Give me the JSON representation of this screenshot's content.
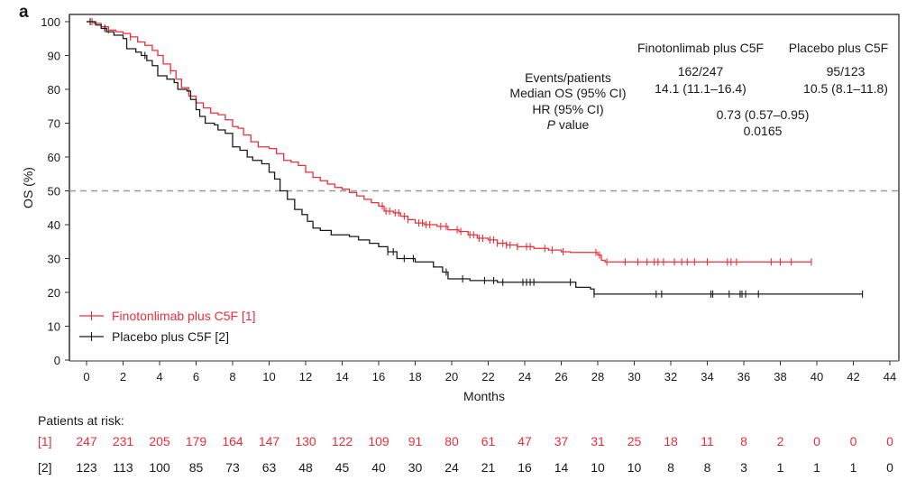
{
  "panel_label": "a",
  "chart_data": {
    "type": "line",
    "subtype": "kaplan-meier",
    "title": "",
    "xlabel": "Months",
    "ylabel": "OS (%)",
    "xlim": [
      0,
      44
    ],
    "ylim": [
      0,
      100
    ],
    "xticks": [
      0,
      2,
      4,
      6,
      8,
      10,
      12,
      14,
      16,
      18,
      20,
      22,
      24,
      26,
      28,
      30,
      32,
      34,
      36,
      38,
      40,
      42,
      44
    ],
    "yticks": [
      0,
      10,
      20,
      30,
      40,
      50,
      60,
      70,
      80,
      90,
      100
    ],
    "reference_line": {
      "y": 50,
      "style": "dashed",
      "color": "#999999"
    },
    "grid": false,
    "legend_position": "bottom-left",
    "series": [
      {
        "name": "Finotonlimab plus C5F [1]",
        "color": "#e8303a",
        "steps": [
          [
            0,
            100
          ],
          [
            0.4,
            99.5
          ],
          [
            0.8,
            98.5
          ],
          [
            1.2,
            97.5
          ],
          [
            1.6,
            97
          ],
          [
            2,
            96.5
          ],
          [
            2.4,
            95.5
          ],
          [
            2.8,
            94
          ],
          [
            3.2,
            93
          ],
          [
            3.6,
            91.5
          ],
          [
            3.9,
            90
          ],
          [
            4.2,
            87.5
          ],
          [
            4.6,
            85.5
          ],
          [
            4.9,
            83
          ],
          [
            5.2,
            80.5
          ],
          [
            5.6,
            78
          ],
          [
            6,
            76
          ],
          [
            6.4,
            74.5
          ],
          [
            6.8,
            73
          ],
          [
            7.2,
            72.5
          ],
          [
            7.6,
            71
          ],
          [
            8,
            69
          ],
          [
            8.3,
            68.5
          ],
          [
            8.6,
            66.5
          ],
          [
            9,
            64.5
          ],
          [
            9.4,
            63
          ],
          [
            10,
            62.5
          ],
          [
            10.4,
            61
          ],
          [
            10.8,
            59
          ],
          [
            11.2,
            58.5
          ],
          [
            11.6,
            57.5
          ],
          [
            12,
            55.5
          ],
          [
            12.4,
            54
          ],
          [
            12.8,
            53
          ],
          [
            13.2,
            52
          ],
          [
            13.6,
            51
          ],
          [
            14,
            50.5
          ],
          [
            14.4,
            49.5
          ],
          [
            14.8,
            48.5
          ],
          [
            15.2,
            47.5
          ],
          [
            15.6,
            46.5
          ],
          [
            16,
            45.5
          ],
          [
            16.3,
            44
          ],
          [
            16.8,
            43.5
          ],
          [
            17.2,
            42.5
          ],
          [
            17.6,
            41.5
          ],
          [
            18,
            40.5
          ],
          [
            18.5,
            40
          ],
          [
            19.2,
            39.5
          ],
          [
            19.8,
            38.5
          ],
          [
            20.4,
            38
          ],
          [
            20.9,
            37
          ],
          [
            21.4,
            36
          ],
          [
            22,
            35.5
          ],
          [
            22.5,
            34.5
          ],
          [
            23,
            34
          ],
          [
            23.6,
            33.5
          ],
          [
            24.5,
            33
          ],
          [
            25.3,
            32.5
          ],
          [
            26,
            32
          ],
          [
            26.5,
            31.8
          ],
          [
            27.7,
            31.8
          ],
          [
            28,
            31
          ],
          [
            28.2,
            29.5
          ],
          [
            28.4,
            29
          ],
          [
            39.7,
            29
          ]
        ],
        "censor_marks": [
          0.3,
          1.2,
          2.4,
          4.6,
          16.2,
          16.4,
          16.6,
          16.9,
          17.1,
          17.4,
          17.6,
          18.2,
          18.4,
          18.6,
          18.8,
          19.4,
          19.7,
          20.3,
          20.5,
          21.0,
          21.2,
          21.5,
          21.7,
          22.1,
          22.3,
          22.5,
          22.8,
          23.0,
          23.2,
          23.6,
          24.1,
          24.3,
          25.1,
          25.5,
          26.1,
          27.9,
          28.1,
          28.5,
          29.5,
          30.2,
          30.7,
          31.1,
          31.3,
          31.6,
          32.2,
          32.6,
          32.9,
          33.3,
          34.0,
          35.1,
          35.3,
          35.6,
          37.5,
          38.0,
          38.6,
          39.7
        ],
        "at_risk": [
          247,
          231,
          205,
          179,
          164,
          147,
          130,
          122,
          109,
          91,
          80,
          61,
          47,
          37,
          31,
          25,
          18,
          11,
          8,
          2,
          0,
          0,
          0
        ]
      },
      {
        "name": "Placebo plus C5F [2]",
        "color": "#1a1a1a",
        "steps": [
          [
            0,
            100
          ],
          [
            0.5,
            99
          ],
          [
            0.8,
            98
          ],
          [
            1.1,
            97
          ],
          [
            1.5,
            96
          ],
          [
            2,
            95
          ],
          [
            2.2,
            92
          ],
          [
            2.7,
            91
          ],
          [
            3,
            90
          ],
          [
            3.3,
            88.5
          ],
          [
            3.6,
            87
          ],
          [
            3.9,
            84
          ],
          [
            4.4,
            83
          ],
          [
            4.8,
            82
          ],
          [
            5,
            80
          ],
          [
            5.5,
            79.5
          ],
          [
            5.7,
            77
          ],
          [
            6,
            74
          ],
          [
            6.2,
            72
          ],
          [
            6.5,
            70
          ],
          [
            7,
            69.5
          ],
          [
            7.2,
            68
          ],
          [
            7.6,
            67
          ],
          [
            8,
            63
          ],
          [
            8.4,
            62
          ],
          [
            8.8,
            60
          ],
          [
            9.1,
            59
          ],
          [
            9.6,
            58
          ],
          [
            10,
            55.5
          ],
          [
            10.3,
            53.5
          ],
          [
            10.6,
            50
          ],
          [
            11,
            47.5
          ],
          [
            11.4,
            44.5
          ],
          [
            11.8,
            43
          ],
          [
            12.1,
            41
          ],
          [
            12.4,
            39
          ],
          [
            12.8,
            38.3
          ],
          [
            13.4,
            37
          ],
          [
            14.4,
            36.5
          ],
          [
            14.9,
            35.5
          ],
          [
            15.5,
            34.5
          ],
          [
            16,
            33.5
          ],
          [
            16.5,
            32
          ],
          [
            17,
            30
          ],
          [
            18,
            29
          ],
          [
            19,
            27.5
          ],
          [
            19.5,
            26
          ],
          [
            19.8,
            24
          ],
          [
            21,
            23.5
          ],
          [
            22.5,
            23
          ],
          [
            26.5,
            23
          ],
          [
            26.8,
            21.5
          ],
          [
            27.6,
            21
          ],
          [
            27.8,
            19.5
          ],
          [
            42.5,
            19.5
          ]
        ],
        "censor_marks": [
          0.2,
          1.0,
          3.2,
          16.5,
          16.8,
          17.4,
          17.9,
          19.7,
          20.6,
          21.8,
          22.3,
          22.8,
          23.9,
          24.1,
          24.3,
          24.5,
          26.5,
          27.8,
          31.2,
          31.5,
          34.2,
          34.3,
          35.2,
          35.8,
          35.9,
          36.1,
          36.8,
          42.5
        ],
        "at_risk": [
          123,
          113,
          100,
          85,
          73,
          63,
          48,
          45,
          40,
          30,
          24,
          21,
          16,
          14,
          10,
          10,
          8,
          8,
          3,
          1,
          1,
          1,
          0
        ]
      }
    ],
    "annotation_table": {
      "row_labels": [
        "Events/patients",
        "Median OS (95% CI)",
        "HR (95% CI)",
        "P value"
      ],
      "columns": [
        "Finotonlimab plus C5F",
        "Placebo plus C5F"
      ],
      "events_patients": [
        "162/247",
        "95/123"
      ],
      "median_os": [
        "14.1 (11.1–16.4)",
        "10.5 (8.1–11.8)"
      ],
      "hr": "0.73 (0.57–0.95)",
      "p_value": "0.0165"
    },
    "at_risk_table": {
      "title": "Patients at risk:",
      "row_labels": [
        "[1]",
        "[2]"
      ]
    }
  }
}
